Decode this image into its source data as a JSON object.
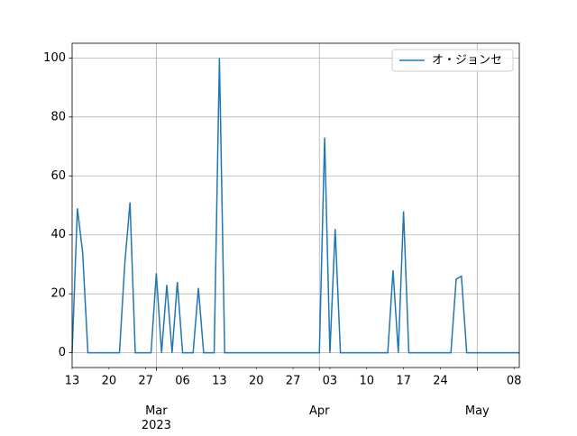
{
  "chart_data": {
    "type": "line",
    "x": [
      "2023-02-13",
      "2023-02-14",
      "2023-02-15",
      "2023-02-16",
      "2023-02-17",
      "2023-02-18",
      "2023-02-19",
      "2023-02-20",
      "2023-02-21",
      "2023-02-22",
      "2023-02-23",
      "2023-02-24",
      "2023-02-25",
      "2023-02-26",
      "2023-02-27",
      "2023-02-28",
      "2023-03-01",
      "2023-03-02",
      "2023-03-03",
      "2023-03-04",
      "2023-03-05",
      "2023-03-06",
      "2023-03-07",
      "2023-03-08",
      "2023-03-09",
      "2023-03-10",
      "2023-03-11",
      "2023-03-12",
      "2023-03-13",
      "2023-03-14",
      "2023-03-15",
      "2023-03-16",
      "2023-03-17",
      "2023-03-18",
      "2023-03-19",
      "2023-03-20",
      "2023-03-21",
      "2023-03-22",
      "2023-03-23",
      "2023-03-24",
      "2023-03-25",
      "2023-03-26",
      "2023-03-27",
      "2023-03-28",
      "2023-03-29",
      "2023-03-30",
      "2023-03-31",
      "2023-04-01",
      "2023-04-02",
      "2023-04-03",
      "2023-04-04",
      "2023-04-05",
      "2023-04-06",
      "2023-04-07",
      "2023-04-08",
      "2023-04-09",
      "2023-04-10",
      "2023-04-11",
      "2023-04-12",
      "2023-04-13",
      "2023-04-14",
      "2023-04-15",
      "2023-04-16",
      "2023-04-17",
      "2023-04-18",
      "2023-04-19",
      "2023-04-20",
      "2023-04-21",
      "2023-04-22",
      "2023-04-23",
      "2023-04-24",
      "2023-04-25",
      "2023-04-26",
      "2023-04-27",
      "2023-04-28",
      "2023-04-29",
      "2023-04-30",
      "2023-05-01",
      "2023-05-02",
      "2023-05-03",
      "2023-05-04",
      "2023-05-05",
      "2023-05-06",
      "2023-05-07",
      "2023-05-08",
      "2023-05-09"
    ],
    "series": [
      {
        "name": "オ・ジョンセ",
        "color": "#1f77b4",
        "values": [
          0,
          49,
          34,
          0,
          0,
          0,
          0,
          0,
          0,
          0,
          30,
          51,
          0,
          0,
          0,
          0,
          27,
          0,
          23,
          0,
          24,
          0,
          0,
          0,
          22,
          0,
          0,
          0,
          100,
          0,
          0,
          0,
          0,
          0,
          0,
          0,
          0,
          0,
          0,
          0,
          0,
          0,
          0,
          0,
          0,
          0,
          0,
          0,
          73,
          0,
          42,
          0,
          0,
          0,
          0,
          0,
          0,
          0,
          0,
          0,
          0,
          28,
          0,
          48,
          0,
          0,
          0,
          0,
          0,
          0,
          0,
          0,
          0,
          25,
          26,
          0,
          0,
          0,
          0,
          0,
          0,
          0,
          0,
          0,
          0,
          0
        ]
      }
    ],
    "xlim": [
      "2023-02-13",
      "2023-05-09"
    ],
    "xticks": [
      {
        "value": "2023-02-13",
        "label": "13"
      },
      {
        "value": "2023-02-20",
        "label": "20"
      },
      {
        "value": "2023-02-27",
        "label": "27"
      },
      {
        "value": "2023-03-06",
        "label": "06"
      },
      {
        "value": "2023-03-13",
        "label": "13"
      },
      {
        "value": "2023-03-20",
        "label": "20"
      },
      {
        "value": "2023-03-27",
        "label": "27"
      },
      {
        "value": "2023-04-03",
        "label": "03"
      },
      {
        "value": "2023-04-10",
        "label": "10"
      },
      {
        "value": "2023-04-17",
        "label": "17"
      },
      {
        "value": "2023-04-24",
        "label": "24"
      },
      {
        "value": "2023-05-08",
        "label": "08"
      }
    ],
    "xticks_major": [
      {
        "value": "2023-03-01",
        "label": "Mar\n2023"
      },
      {
        "value": "2023-04-01",
        "label": "Apr"
      },
      {
        "value": "2023-05-01",
        "label": "May"
      }
    ],
    "ylim": [
      -5,
      105
    ],
    "yticks": [
      0,
      20,
      40,
      60,
      80,
      100
    ],
    "grid": true,
    "legend": "upper right"
  }
}
